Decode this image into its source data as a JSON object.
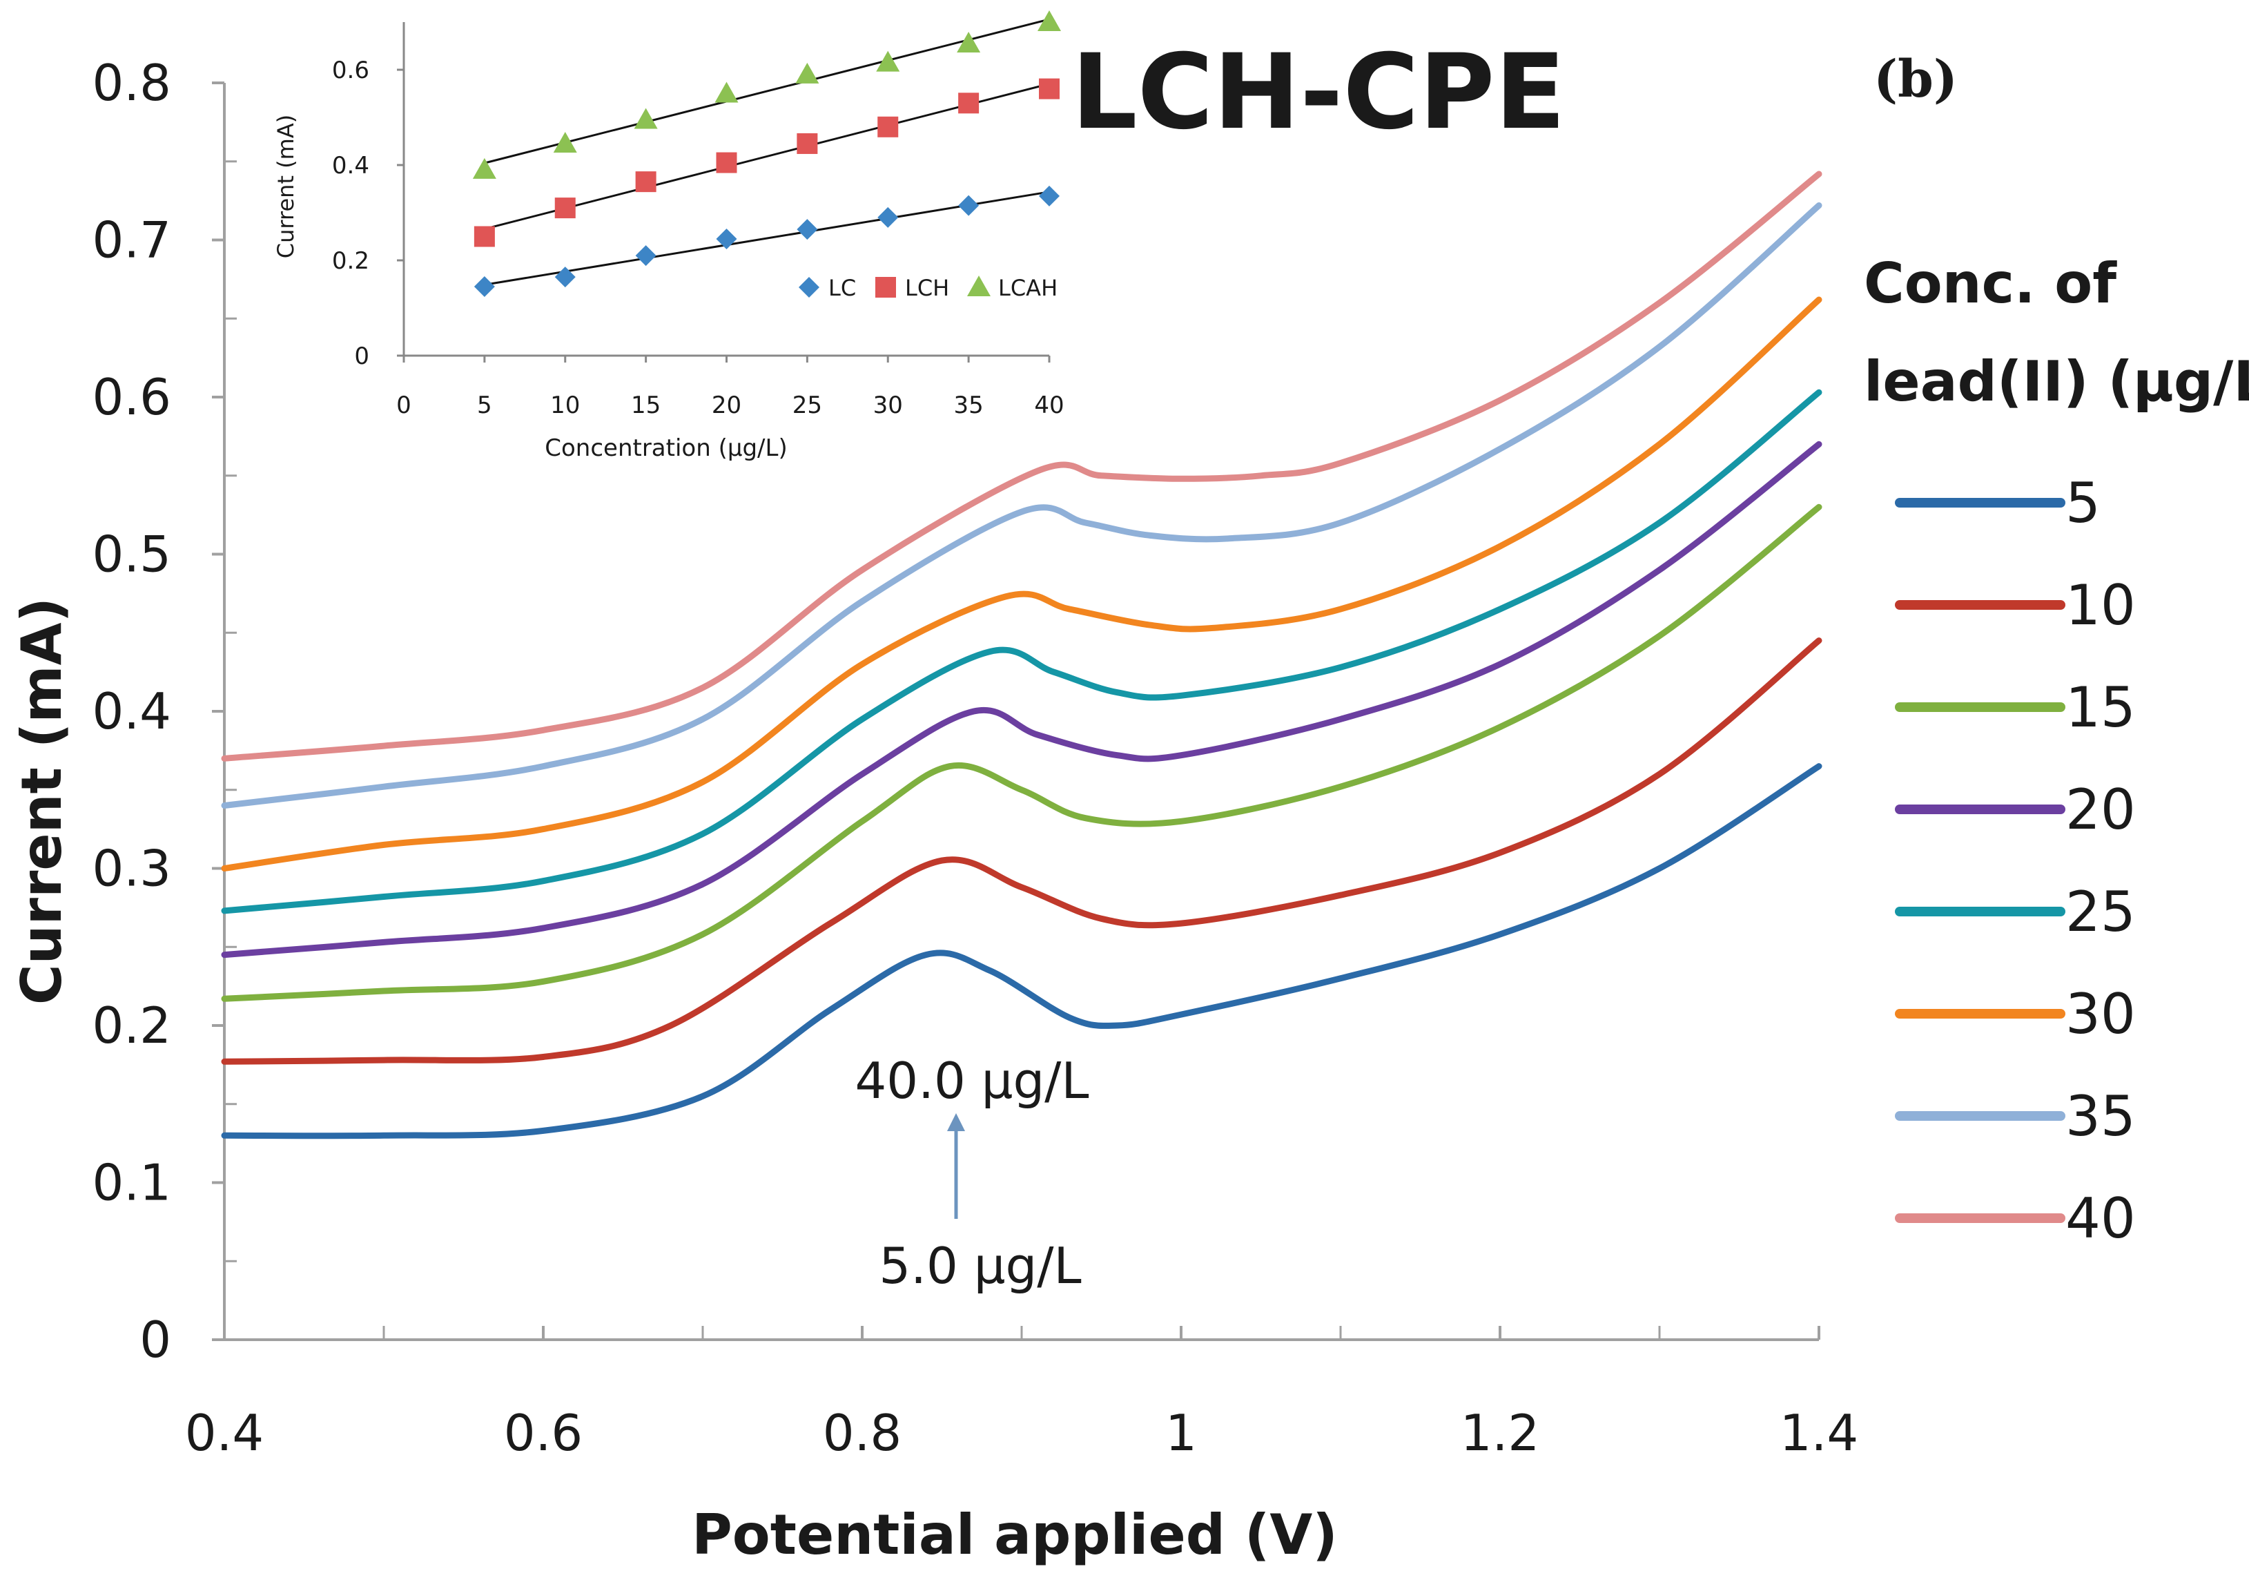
{
  "panel_label": "(b)",
  "chart_data": [
    {
      "type": "line",
      "title": "LCH-CPE",
      "xlabel": "Potential applied (V)",
      "ylabel": "Current (mA)",
      "xlim": [
        0.4,
        1.4
      ],
      "ylim": [
        0,
        0.8
      ],
      "xticks": [
        "0.4",
        "0.6",
        "0.8",
        "1",
        "1.2",
        "1.4"
      ],
      "yticks": [
        "0",
        "0.1",
        "0.2",
        "0.3",
        "0.4",
        "0.5",
        "0.6",
        "0.7",
        "0.8"
      ],
      "legend_title": [
        "Conc. of",
        "lead(II) (µg/L)"
      ],
      "legend_position": "right",
      "annotations": [
        "40.0 µg/L",
        "5.0 µg/L"
      ],
      "series": [
        {
          "name": "5",
          "color": "#2b6aa8",
          "points": [
            [
              0.4,
              0.13
            ],
            [
              0.5,
              0.13
            ],
            [
              0.6,
              0.133
            ],
            [
              0.7,
              0.155
            ],
            [
              0.78,
              0.21
            ],
            [
              0.84,
              0.245
            ],
            [
              0.88,
              0.235
            ],
            [
              0.93,
              0.205
            ],
            [
              0.96,
              0.2
            ],
            [
              1.0,
              0.207
            ],
            [
              1.1,
              0.23
            ],
            [
              1.2,
              0.258
            ],
            [
              1.3,
              0.3
            ],
            [
              1.4,
              0.365
            ]
          ]
        },
        {
          "name": "10",
          "color": "#c0392b",
          "points": [
            [
              0.4,
              0.177
            ],
            [
              0.5,
              0.178
            ],
            [
              0.6,
              0.18
            ],
            [
              0.68,
              0.2
            ],
            [
              0.78,
              0.265
            ],
            [
              0.85,
              0.305
            ],
            [
              0.9,
              0.288
            ],
            [
              0.95,
              0.268
            ],
            [
              1.0,
              0.265
            ],
            [
              1.1,
              0.283
            ],
            [
              1.2,
              0.31
            ],
            [
              1.3,
              0.36
            ],
            [
              1.4,
              0.445
            ]
          ]
        },
        {
          "name": "15",
          "color": "#7fb03f",
          "points": [
            [
              0.4,
              0.217
            ],
            [
              0.5,
              0.222
            ],
            [
              0.6,
              0.228
            ],
            [
              0.7,
              0.258
            ],
            [
              0.8,
              0.33
            ],
            [
              0.855,
              0.365
            ],
            [
              0.9,
              0.35
            ],
            [
              0.94,
              0.332
            ],
            [
              1.0,
              0.33
            ],
            [
              1.1,
              0.352
            ],
            [
              1.2,
              0.39
            ],
            [
              1.3,
              0.448
            ],
            [
              1.4,
              0.53
            ]
          ]
        },
        {
          "name": "20",
          "color": "#6b3fa0",
          "points": [
            [
              0.4,
              0.245
            ],
            [
              0.5,
              0.253
            ],
            [
              0.6,
              0.262
            ],
            [
              0.7,
              0.29
            ],
            [
              0.8,
              0.36
            ],
            [
              0.87,
              0.4
            ],
            [
              0.91,
              0.385
            ],
            [
              0.96,
              0.372
            ],
            [
              1.0,
              0.372
            ],
            [
              1.1,
              0.395
            ],
            [
              1.2,
              0.43
            ],
            [
              1.3,
              0.49
            ],
            [
              1.4,
              0.57
            ]
          ]
        },
        {
          "name": "25",
          "color": "#1596a6",
          "points": [
            [
              0.4,
              0.273
            ],
            [
              0.5,
              0.282
            ],
            [
              0.6,
              0.292
            ],
            [
              0.7,
              0.322
            ],
            [
              0.8,
              0.395
            ],
            [
              0.88,
              0.438
            ],
            [
              0.92,
              0.425
            ],
            [
              0.96,
              0.412
            ],
            [
              1.0,
              0.41
            ],
            [
              1.1,
              0.428
            ],
            [
              1.2,
              0.465
            ],
            [
              1.3,
              0.52
            ],
            [
              1.4,
              0.603
            ]
          ]
        },
        {
          "name": "30",
          "color": "#f2851f",
          "points": [
            [
              0.4,
              0.3
            ],
            [
              0.5,
              0.315
            ],
            [
              0.6,
              0.325
            ],
            [
              0.7,
              0.355
            ],
            [
              0.8,
              0.43
            ],
            [
              0.89,
              0.473
            ],
            [
              0.93,
              0.465
            ],
            [
              0.98,
              0.455
            ],
            [
              1.02,
              0.453
            ],
            [
              1.1,
              0.465
            ],
            [
              1.2,
              0.505
            ],
            [
              1.3,
              0.57
            ],
            [
              1.4,
              0.662
            ]
          ]
        },
        {
          "name": "35",
          "color": "#8fb0d8",
          "points": [
            [
              0.4,
              0.34
            ],
            [
              0.5,
              0.352
            ],
            [
              0.6,
              0.365
            ],
            [
              0.7,
              0.395
            ],
            [
              0.8,
              0.47
            ],
            [
              0.9,
              0.527
            ],
            [
              0.94,
              0.52
            ],
            [
              0.98,
              0.512
            ],
            [
              1.03,
              0.51
            ],
            [
              1.1,
              0.52
            ],
            [
              1.2,
              0.567
            ],
            [
              1.3,
              0.632
            ],
            [
              1.4,
              0.722
            ]
          ]
        },
        {
          "name": "40",
          "color": "#e08a8a",
          "points": [
            [
              0.4,
              0.37
            ],
            [
              0.5,
              0.378
            ],
            [
              0.6,
              0.388
            ],
            [
              0.7,
              0.415
            ],
            [
              0.8,
              0.49
            ],
            [
              0.91,
              0.553
            ],
            [
              0.95,
              0.55
            ],
            [
              1.0,
              0.548
            ],
            [
              1.05,
              0.55
            ],
            [
              1.1,
              0.558
            ],
            [
              1.2,
              0.598
            ],
            [
              1.3,
              0.66
            ],
            [
              1.4,
              0.742
            ]
          ]
        }
      ]
    },
    {
      "type": "scatter",
      "title": "",
      "xlabel": "Concentration (µg/L)",
      "ylabel": "Current (mA)",
      "xlim": [
        0,
        40
      ],
      "ylim": [
        0,
        0.7
      ],
      "xticks": [
        "0",
        "5",
        "10",
        "15",
        "20",
        "25",
        "30",
        "35",
        "40"
      ],
      "yticks": [
        "0",
        "0.2",
        "0.4",
        "0.6"
      ],
      "legend_position": "bottom-right",
      "trendline": "linear",
      "x": [
        5,
        10,
        15,
        20,
        25,
        30,
        35,
        40
      ],
      "series": [
        {
          "name": "LC",
          "marker": "diamond",
          "color": "#3d85c6",
          "values": [
            0.145,
            0.165,
            0.21,
            0.245,
            0.265,
            0.29,
            0.315,
            0.335
          ]
        },
        {
          "name": "LCH",
          "marker": "square",
          "color": "#e05555",
          "values": [
            0.25,
            0.31,
            0.365,
            0.405,
            0.445,
            0.48,
            0.53,
            0.56
          ]
        },
        {
          "name": "LCAH",
          "marker": "triangle",
          "color": "#8cc152",
          "values": [
            0.39,
            0.445,
            0.495,
            0.55,
            0.59,
            0.615,
            0.655,
            0.7
          ]
        }
      ]
    }
  ]
}
